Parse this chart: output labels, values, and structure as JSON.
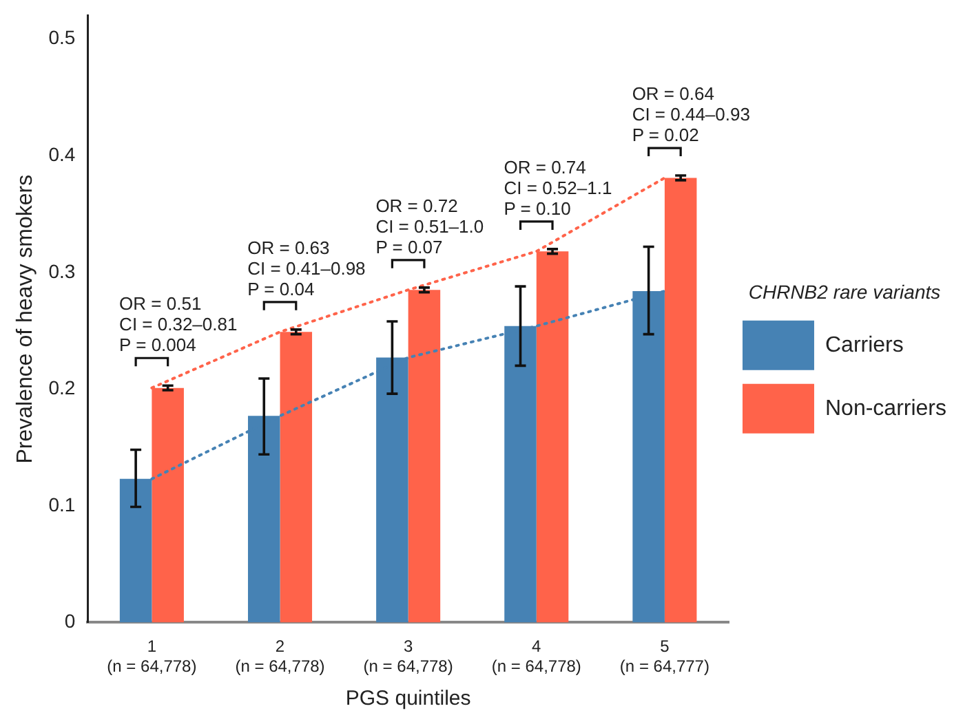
{
  "chart_data": {
    "type": "bar",
    "xlabel": "PGS quintiles",
    "ylabel": "Prevalence of heavy smokers",
    "legend_title": "CHRNB2 rare variants",
    "categories": [
      "1\n(n = 64,778)",
      "2\n(n = 64,778)",
      "3\n(n = 64,778)",
      "4\n(n = 64,778)",
      "5\n(n = 64,777)"
    ],
    "series": [
      {
        "name": "Carriers",
        "color": "#4682b4",
        "values": [
          0.123,
          0.177,
          0.227,
          0.254,
          0.284
        ],
        "errors": [
          [
            0.099,
            0.148
          ],
          [
            0.144,
            0.209
          ],
          [
            0.196,
            0.258
          ],
          [
            0.22,
            0.288
          ],
          [
            0.247,
            0.322
          ]
        ]
      },
      {
        "name": "Non-carriers",
        "color": "#ff634a",
        "values": [
          0.201,
          0.249,
          0.285,
          0.318,
          0.381
        ],
        "errors": [
          [
            0.199,
            0.203
          ],
          [
            0.247,
            0.251
          ],
          [
            0.283,
            0.287
          ],
          [
            0.316,
            0.32
          ],
          [
            0.379,
            0.383
          ]
        ]
      },
      {
        "type": "line",
        "color": "#4682b4",
        "line_style": "dotted",
        "marker": "none",
        "values": [
          0.123,
          0.177,
          0.227,
          0.254,
          0.284
        ]
      },
      {
        "type": "line",
        "color": "#ff634a",
        "line_style": "dotted",
        "marker": "none",
        "values": [
          0.201,
          0.249,
          0.285,
          0.318,
          0.381
        ]
      }
    ],
    "annotations": [
      "OR = 0.51\nCI = 0.32–0.81\nP = 0.004",
      "OR = 0.63\nCI = 0.41–0.98\nP = 0.04",
      "OR = 0.72\nCI = 0.51–1.0\nP = 0.07",
      "OR = 0.74\nCI = 0.52–1.1\nP = 0.10",
      "OR = 0.64\nCI = 0.44–0.93\nP = 0.02"
    ],
    "ylim": [
      0,
      0.52
    ],
    "yticks": [
      0,
      0.1,
      0.2,
      0.3,
      0.4,
      0.5
    ],
    "grid": false,
    "legend": "right"
  }
}
